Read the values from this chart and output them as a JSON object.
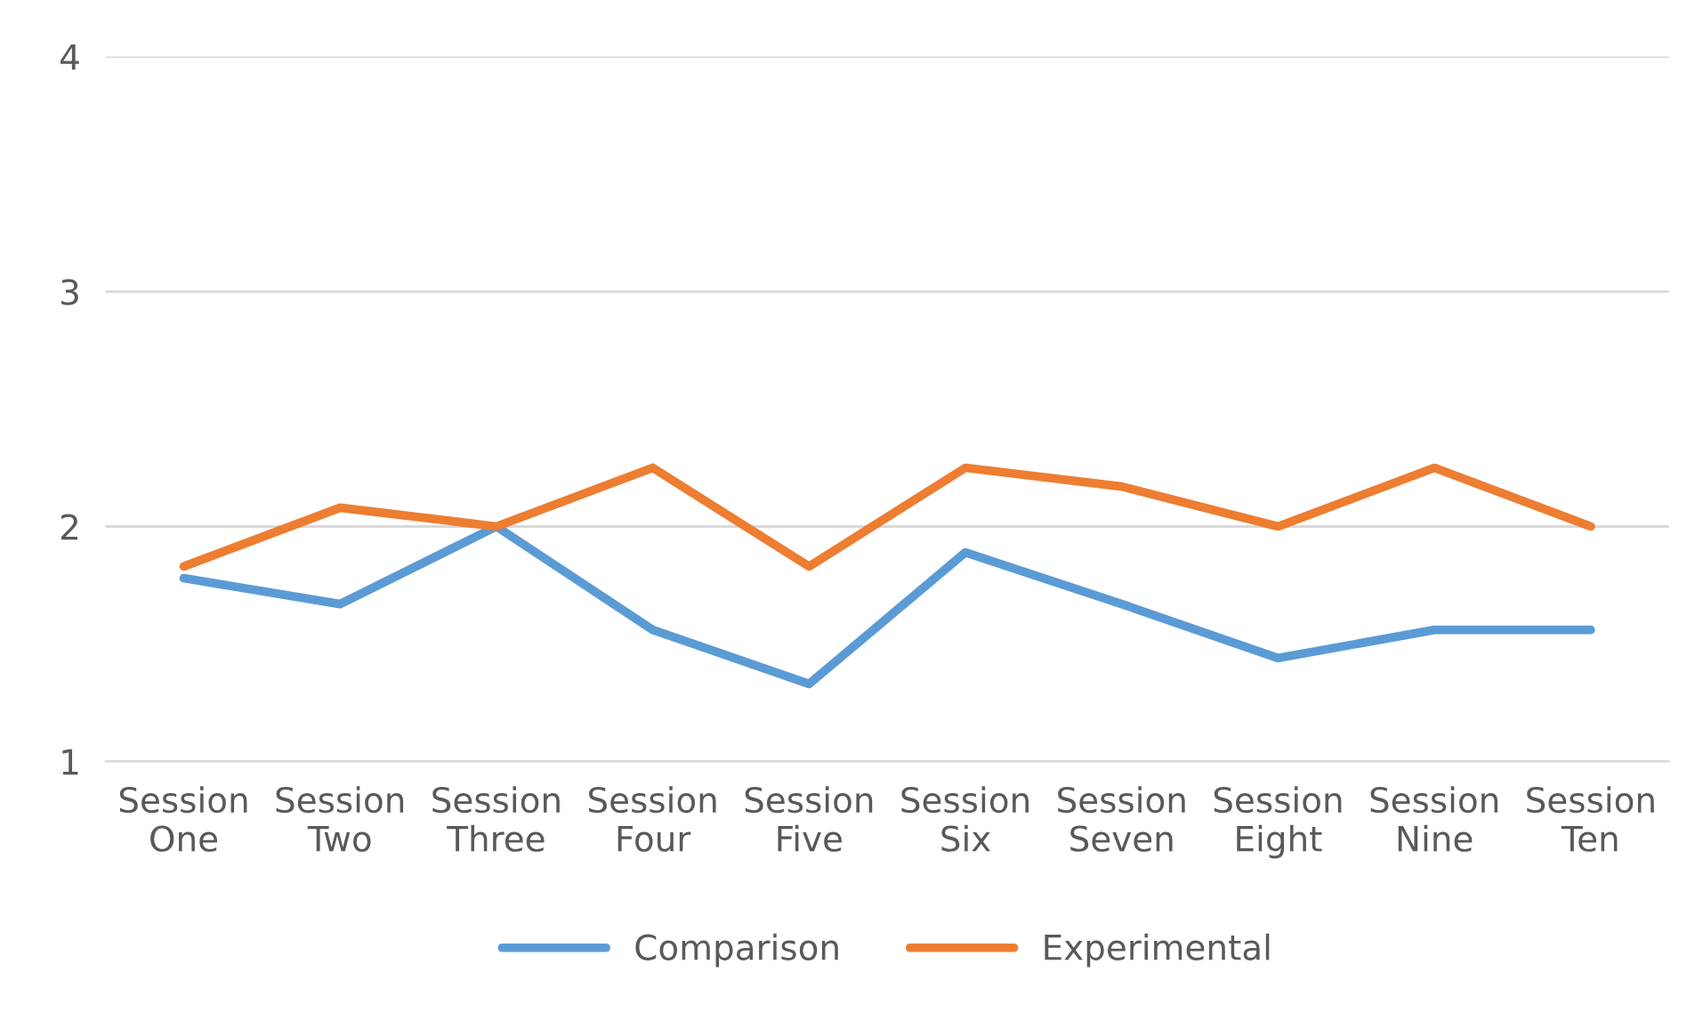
{
  "chart_data": {
    "type": "line",
    "categories": [
      "Session\nOne",
      "Session\nTwo",
      "Session\nThree",
      "Session\nFour",
      "Session\nFive",
      "Session\nSix",
      "Session\nSeven",
      "Session\nEight",
      "Session\nNine",
      "Session\nTen"
    ],
    "series": [
      {
        "name": "Comparison",
        "color": "#5b9bd5",
        "values": [
          1.78,
          1.67,
          2.0,
          1.56,
          1.33,
          1.89,
          1.67,
          1.44,
          1.56,
          1.56
        ]
      },
      {
        "name": "Experimental",
        "color": "#ed7d31",
        "values": [
          1.83,
          2.08,
          2.0,
          2.25,
          1.83,
          2.25,
          2.17,
          2.0,
          2.25,
          2.0
        ]
      }
    ],
    "ylim": [
      1,
      4
    ],
    "yticks": [
      1,
      2,
      3,
      4
    ],
    "grid": "y",
    "legend": "bottom",
    "marker": "none",
    "line_style": "solid"
  }
}
